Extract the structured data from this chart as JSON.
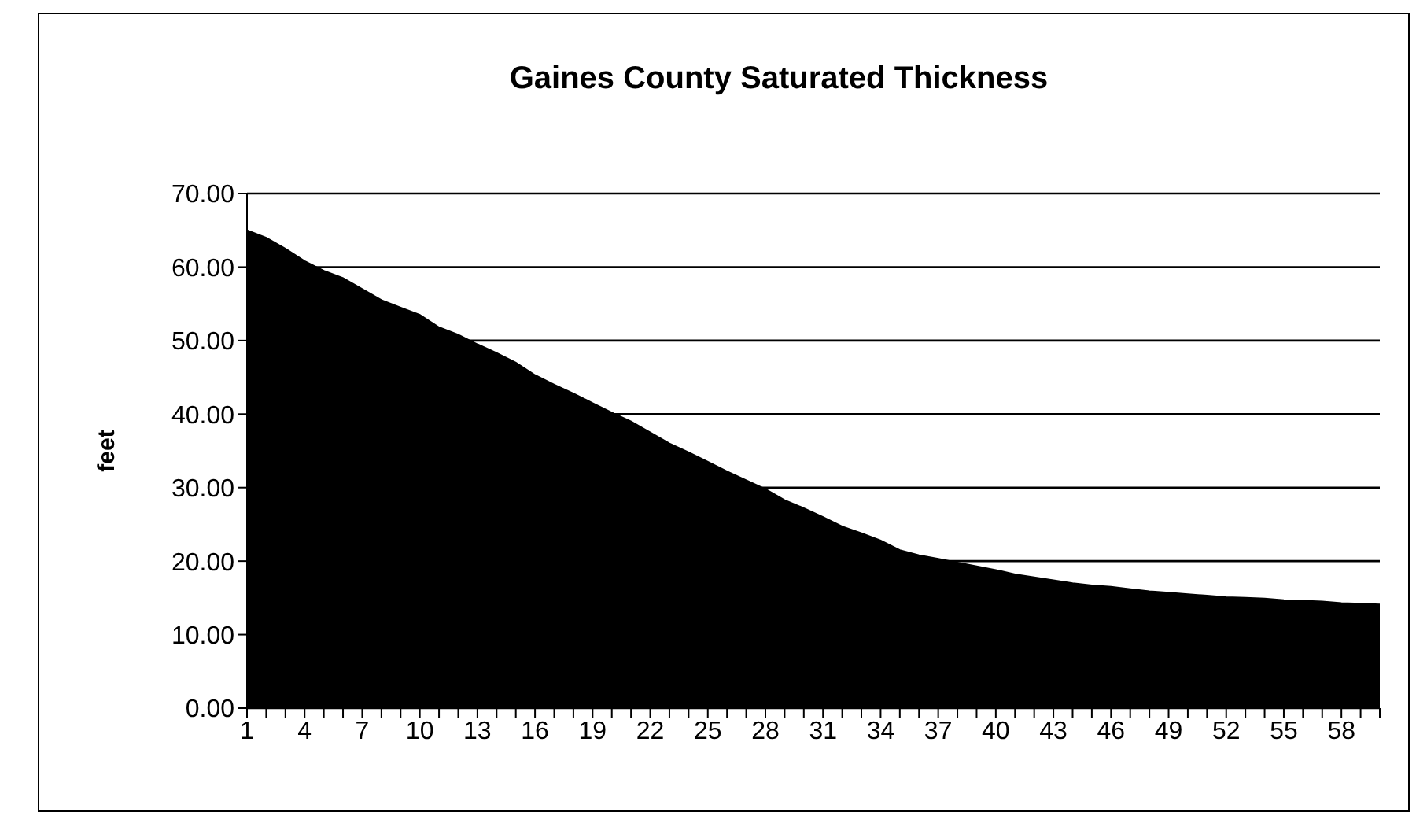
{
  "chart_data": {
    "type": "area",
    "title": "Gaines County Saturated Thickness",
    "ylabel": "feet",
    "categories": [
      "1",
      null,
      null,
      "4",
      null,
      null,
      "7",
      null,
      null,
      "10",
      null,
      null,
      "13",
      null,
      null,
      "16",
      null,
      null,
      "19",
      null,
      null,
      "22",
      null,
      null,
      "25",
      null,
      null,
      "28",
      null,
      null,
      "31",
      null,
      null,
      "34",
      null,
      null,
      "37",
      null,
      null,
      "40",
      null,
      null,
      "43",
      null,
      null,
      "46",
      null,
      null,
      "49",
      null,
      null,
      "52",
      null,
      null,
      "55",
      null,
      null,
      "58",
      null,
      null
    ],
    "series": [
      {
        "color": "#000000",
        "values": [
          65,
          64,
          62.5,
          60.8,
          59.5,
          58.5,
          57,
          55.5,
          54.5,
          53.5,
          51.8,
          50.8,
          49.5,
          48.3,
          47,
          45.3,
          44,
          42.8,
          41.5,
          40.2,
          39,
          37.5,
          36,
          34.8,
          33.5,
          32.2,
          31,
          29.8,
          28.3,
          27.2,
          26,
          24.7,
          23.8,
          22.8,
          21.5,
          20.8,
          20.3,
          19.8,
          19.3,
          18.8,
          18.2,
          17.8,
          17.4,
          17,
          16.7,
          16.5,
          16.2,
          15.9,
          15.7,
          15.5,
          15.3,
          15.1,
          15,
          14.9,
          14.7,
          14.6,
          14.5,
          14.3,
          14.2,
          14.1
        ]
      }
    ],
    "ylim": [
      0,
      70
    ],
    "yticks": [
      {
        "value": 0,
        "label": "0.00"
      },
      {
        "value": 10,
        "label": "10.00"
      },
      {
        "value": 20,
        "label": "20.00"
      },
      {
        "value": 30,
        "label": "30.00"
      },
      {
        "value": 40,
        "label": "40.00"
      },
      {
        "value": 50,
        "label": "50.00"
      },
      {
        "value": 60,
        "label": "60.00"
      },
      {
        "value": 70,
        "label": "70.00"
      }
    ],
    "grid": "y",
    "legend": false
  }
}
